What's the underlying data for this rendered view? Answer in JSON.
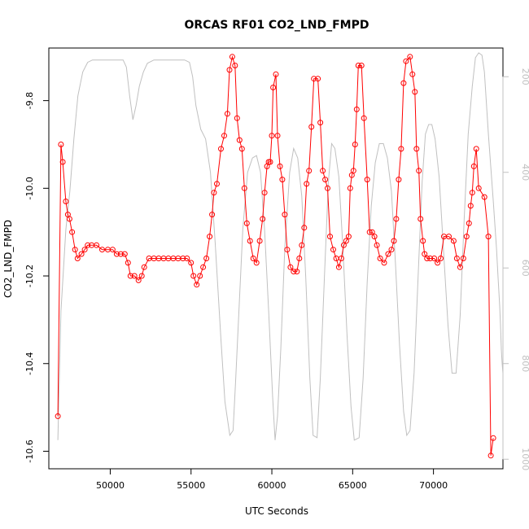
{
  "chart_data": {
    "type": "line",
    "title": "ORCAS RF01 CO2_LND_FMPD",
    "xlabel": "UTC Seconds",
    "ylabel": "CO2_LND_FMPD",
    "xlim": [
      46200,
      74300
    ],
    "ylim": [
      -10.64,
      -9.68
    ],
    "y2lim": [
      1020,
      140
    ],
    "x_ticks": [
      {
        "value": 50000,
        "label": "50000"
      },
      {
        "value": 55000,
        "label": "55000"
      },
      {
        "value": 60000,
        "label": "60000"
      },
      {
        "value": 65000,
        "label": "65000"
      },
      {
        "value": 70000,
        "label": "70000"
      }
    ],
    "y_ticks": [
      {
        "value": -9.8,
        "label": "-9.8"
      },
      {
        "value": -10.0,
        "label": "-10.0"
      },
      {
        "value": -10.2,
        "label": "-10.2"
      },
      {
        "value": -10.4,
        "label": "-10.4"
      },
      {
        "value": -10.6,
        "label": "-10.6"
      }
    ],
    "y2_ticks": [
      {
        "value": 200,
        "label": "200"
      },
      {
        "value": 400,
        "label": "400"
      },
      {
        "value": 600,
        "label": "600"
      },
      {
        "value": 800,
        "label": "800"
      },
      {
        "value": 1000,
        "label": "1000"
      }
    ],
    "colors": {
      "co2_series": "#ff0000",
      "pressure_series": "#c0c0c0",
      "axes": "#000000"
    },
    "series": [
      {
        "axis": "left",
        "marker": "circle",
        "points": [
          [
            46760,
            -10.52
          ],
          [
            46950,
            -9.9
          ],
          [
            47060,
            -9.94
          ],
          [
            47250,
            -10.03
          ],
          [
            47380,
            -10.06
          ],
          [
            47480,
            -10.07
          ],
          [
            47640,
            -10.1
          ],
          [
            47820,
            -10.14
          ],
          [
            47980,
            -10.16
          ],
          [
            48220,
            -10.15
          ],
          [
            48420,
            -10.14
          ],
          [
            48600,
            -10.13
          ],
          [
            48850,
            -10.13
          ],
          [
            49150,
            -10.13
          ],
          [
            49500,
            -10.14
          ],
          [
            49850,
            -10.14
          ],
          [
            50150,
            -10.14
          ],
          [
            50400,
            -10.15
          ],
          [
            50650,
            -10.15
          ],
          [
            50900,
            -10.15
          ],
          [
            51100,
            -10.17
          ],
          [
            51250,
            -10.2
          ],
          [
            51500,
            -10.2
          ],
          [
            51750,
            -10.21
          ],
          [
            51950,
            -10.2
          ],
          [
            52100,
            -10.18
          ],
          [
            52400,
            -10.16
          ],
          [
            52700,
            -10.16
          ],
          [
            53000,
            -10.16
          ],
          [
            53300,
            -10.16
          ],
          [
            53600,
            -10.16
          ],
          [
            53900,
            -10.16
          ],
          [
            54200,
            -10.16
          ],
          [
            54500,
            -10.16
          ],
          [
            54750,
            -10.16
          ],
          [
            55000,
            -10.17
          ],
          [
            55150,
            -10.2
          ],
          [
            55350,
            -10.22
          ],
          [
            55550,
            -10.2
          ],
          [
            55750,
            -10.18
          ],
          [
            55950,
            -10.16
          ],
          [
            56150,
            -10.11
          ],
          [
            56300,
            -10.06
          ],
          [
            56420,
            -10.01
          ],
          [
            56600,
            -9.99
          ],
          [
            56850,
            -9.91
          ],
          [
            57050,
            -9.88
          ],
          [
            57250,
            -9.83
          ],
          [
            57380,
            -9.73
          ],
          [
            57550,
            -9.7
          ],
          [
            57720,
            -9.72
          ],
          [
            57850,
            -9.84
          ],
          [
            58000,
            -9.89
          ],
          [
            58150,
            -9.91
          ],
          [
            58300,
            -10.0
          ],
          [
            58450,
            -10.08
          ],
          [
            58650,
            -10.12
          ],
          [
            58850,
            -10.16
          ],
          [
            59050,
            -10.17
          ],
          [
            59250,
            -10.12
          ],
          [
            59430,
            -10.07
          ],
          [
            59550,
            -10.01
          ],
          [
            59700,
            -9.95
          ],
          [
            59800,
            -9.94
          ],
          [
            59900,
            -9.94
          ],
          [
            60000,
            -9.88
          ],
          [
            60080,
            -9.77
          ],
          [
            60250,
            -9.74
          ],
          [
            60350,
            -9.88
          ],
          [
            60500,
            -9.95
          ],
          [
            60650,
            -9.98
          ],
          [
            60800,
            -10.06
          ],
          [
            60950,
            -10.14
          ],
          [
            61150,
            -10.18
          ],
          [
            61350,
            -10.19
          ],
          [
            61550,
            -10.19
          ],
          [
            61700,
            -10.16
          ],
          [
            61850,
            -10.13
          ],
          [
            62000,
            -10.09
          ],
          [
            62150,
            -9.99
          ],
          [
            62300,
            -9.96
          ],
          [
            62450,
            -9.86
          ],
          [
            62600,
            -9.75
          ],
          [
            62850,
            -9.75
          ],
          [
            63000,
            -9.85
          ],
          [
            63150,
            -9.96
          ],
          [
            63300,
            -9.98
          ],
          [
            63450,
            -10.0
          ],
          [
            63600,
            -10.11
          ],
          [
            63800,
            -10.14
          ],
          [
            63980,
            -10.16
          ],
          [
            64150,
            -10.18
          ],
          [
            64300,
            -10.16
          ],
          [
            64450,
            -10.13
          ],
          [
            64600,
            -10.12
          ],
          [
            64750,
            -10.11
          ],
          [
            64850,
            -10.0
          ],
          [
            64950,
            -9.97
          ],
          [
            65050,
            -9.96
          ],
          [
            65150,
            -9.9
          ],
          [
            65250,
            -9.82
          ],
          [
            65350,
            -9.72
          ],
          [
            65550,
            -9.72
          ],
          [
            65700,
            -9.84
          ],
          [
            65900,
            -9.98
          ],
          [
            66050,
            -10.1
          ],
          [
            66200,
            -10.1
          ],
          [
            66350,
            -10.11
          ],
          [
            66500,
            -10.13
          ],
          [
            66700,
            -10.16
          ],
          [
            66950,
            -10.17
          ],
          [
            67200,
            -10.15
          ],
          [
            67400,
            -10.14
          ],
          [
            67550,
            -10.12
          ],
          [
            67700,
            -10.07
          ],
          [
            67850,
            -9.98
          ],
          [
            68000,
            -9.91
          ],
          [
            68150,
            -9.76
          ],
          [
            68300,
            -9.71
          ],
          [
            68550,
            -9.7
          ],
          [
            68700,
            -9.74
          ],
          [
            68850,
            -9.78
          ],
          [
            68950,
            -9.91
          ],
          [
            69100,
            -9.96
          ],
          [
            69200,
            -10.07
          ],
          [
            69350,
            -10.12
          ],
          [
            69450,
            -10.15
          ],
          [
            69600,
            -10.16
          ],
          [
            69800,
            -10.16
          ],
          [
            70050,
            -10.16
          ],
          [
            70250,
            -10.17
          ],
          [
            70450,
            -10.16
          ],
          [
            70650,
            -10.11
          ],
          [
            70950,
            -10.11
          ],
          [
            71250,
            -10.12
          ],
          [
            71450,
            -10.16
          ],
          [
            71650,
            -10.18
          ],
          [
            71850,
            -10.16
          ],
          [
            72050,
            -10.11
          ],
          [
            72200,
            -10.08
          ],
          [
            72300,
            -10.04
          ],
          [
            72400,
            -10.01
          ],
          [
            72500,
            -9.95
          ],
          [
            72650,
            -9.91
          ],
          [
            72800,
            -10.0
          ],
          [
            73150,
            -10.02
          ],
          [
            73400,
            -10.11
          ],
          [
            73550,
            -10.61
          ],
          [
            73700,
            -10.57
          ]
        ]
      },
      {
        "axis": "right",
        "marker": "none",
        "points": [
          [
            46760,
            960
          ],
          [
            46950,
            690
          ],
          [
            47250,
            520
          ],
          [
            47500,
            440
          ],
          [
            47750,
            330
          ],
          [
            48000,
            240
          ],
          [
            48300,
            190
          ],
          [
            48600,
            170
          ],
          [
            48900,
            165
          ],
          [
            49500,
            165
          ],
          [
            50300,
            165
          ],
          [
            50800,
            165
          ],
          [
            51000,
            180
          ],
          [
            51200,
            240
          ],
          [
            51400,
            290
          ],
          [
            51600,
            260
          ],
          [
            51800,
            220
          ],
          [
            52050,
            190
          ],
          [
            52300,
            172
          ],
          [
            52700,
            165
          ],
          [
            53500,
            165
          ],
          [
            54600,
            165
          ],
          [
            54900,
            170
          ],
          [
            55100,
            200
          ],
          [
            55300,
            260
          ],
          [
            55600,
            310
          ],
          [
            55900,
            330
          ],
          [
            56200,
            400
          ],
          [
            56500,
            550
          ],
          [
            56850,
            750
          ],
          [
            57100,
            880
          ],
          [
            57400,
            950
          ],
          [
            57600,
            940
          ],
          [
            57750,
            840
          ],
          [
            57950,
            700
          ],
          [
            58200,
            520
          ],
          [
            58500,
            400
          ],
          [
            58800,
            370
          ],
          [
            59050,
            365
          ],
          [
            59300,
            400
          ],
          [
            59550,
            520
          ],
          [
            59800,
            690
          ],
          [
            60050,
            870
          ],
          [
            60200,
            960
          ],
          [
            60350,
            910
          ],
          [
            60550,
            770
          ],
          [
            60800,
            560
          ],
          [
            61100,
            400
          ],
          [
            61350,
            350
          ],
          [
            61600,
            370
          ],
          [
            61850,
            450
          ],
          [
            62100,
            620
          ],
          [
            62350,
            830
          ],
          [
            62550,
            950
          ],
          [
            62800,
            955
          ],
          [
            63000,
            830
          ],
          [
            63250,
            620
          ],
          [
            63500,
            420
          ],
          [
            63700,
            340
          ],
          [
            63900,
            350
          ],
          [
            64150,
            410
          ],
          [
            64400,
            560
          ],
          [
            64650,
            740
          ],
          [
            64900,
            890
          ],
          [
            65100,
            960
          ],
          [
            65400,
            955
          ],
          [
            65650,
            830
          ],
          [
            65900,
            630
          ],
          [
            66150,
            470
          ],
          [
            66400,
            380
          ],
          [
            66650,
            340
          ],
          [
            66900,
            340
          ],
          [
            67150,
            370
          ],
          [
            67400,
            440
          ],
          [
            67650,
            590
          ],
          [
            67900,
            760
          ],
          [
            68150,
            900
          ],
          [
            68350,
            950
          ],
          [
            68550,
            940
          ],
          [
            68800,
            820
          ],
          [
            69050,
            620
          ],
          [
            69300,
            420
          ],
          [
            69500,
            320
          ],
          [
            69700,
            300
          ],
          [
            69900,
            300
          ],
          [
            70100,
            330
          ],
          [
            70350,
            410
          ],
          [
            70600,
            550
          ],
          [
            70900,
            720
          ],
          [
            71150,
            820
          ],
          [
            71400,
            820
          ],
          [
            71650,
            700
          ],
          [
            71900,
            500
          ],
          [
            72150,
            320
          ],
          [
            72400,
            220
          ],
          [
            72600,
            160
          ],
          [
            72800,
            150
          ],
          [
            73000,
            155
          ],
          [
            73150,
            190
          ],
          [
            73400,
            320
          ],
          [
            73700,
            460
          ],
          [
            73900,
            560
          ],
          [
            74000,
            620
          ],
          [
            74100,
            680
          ],
          [
            74150,
            720
          ],
          [
            74200,
            770
          ],
          [
            74250,
            800
          ],
          [
            74300,
            820
          ],
          [
            74300,
            850
          ]
        ]
      }
    ]
  }
}
